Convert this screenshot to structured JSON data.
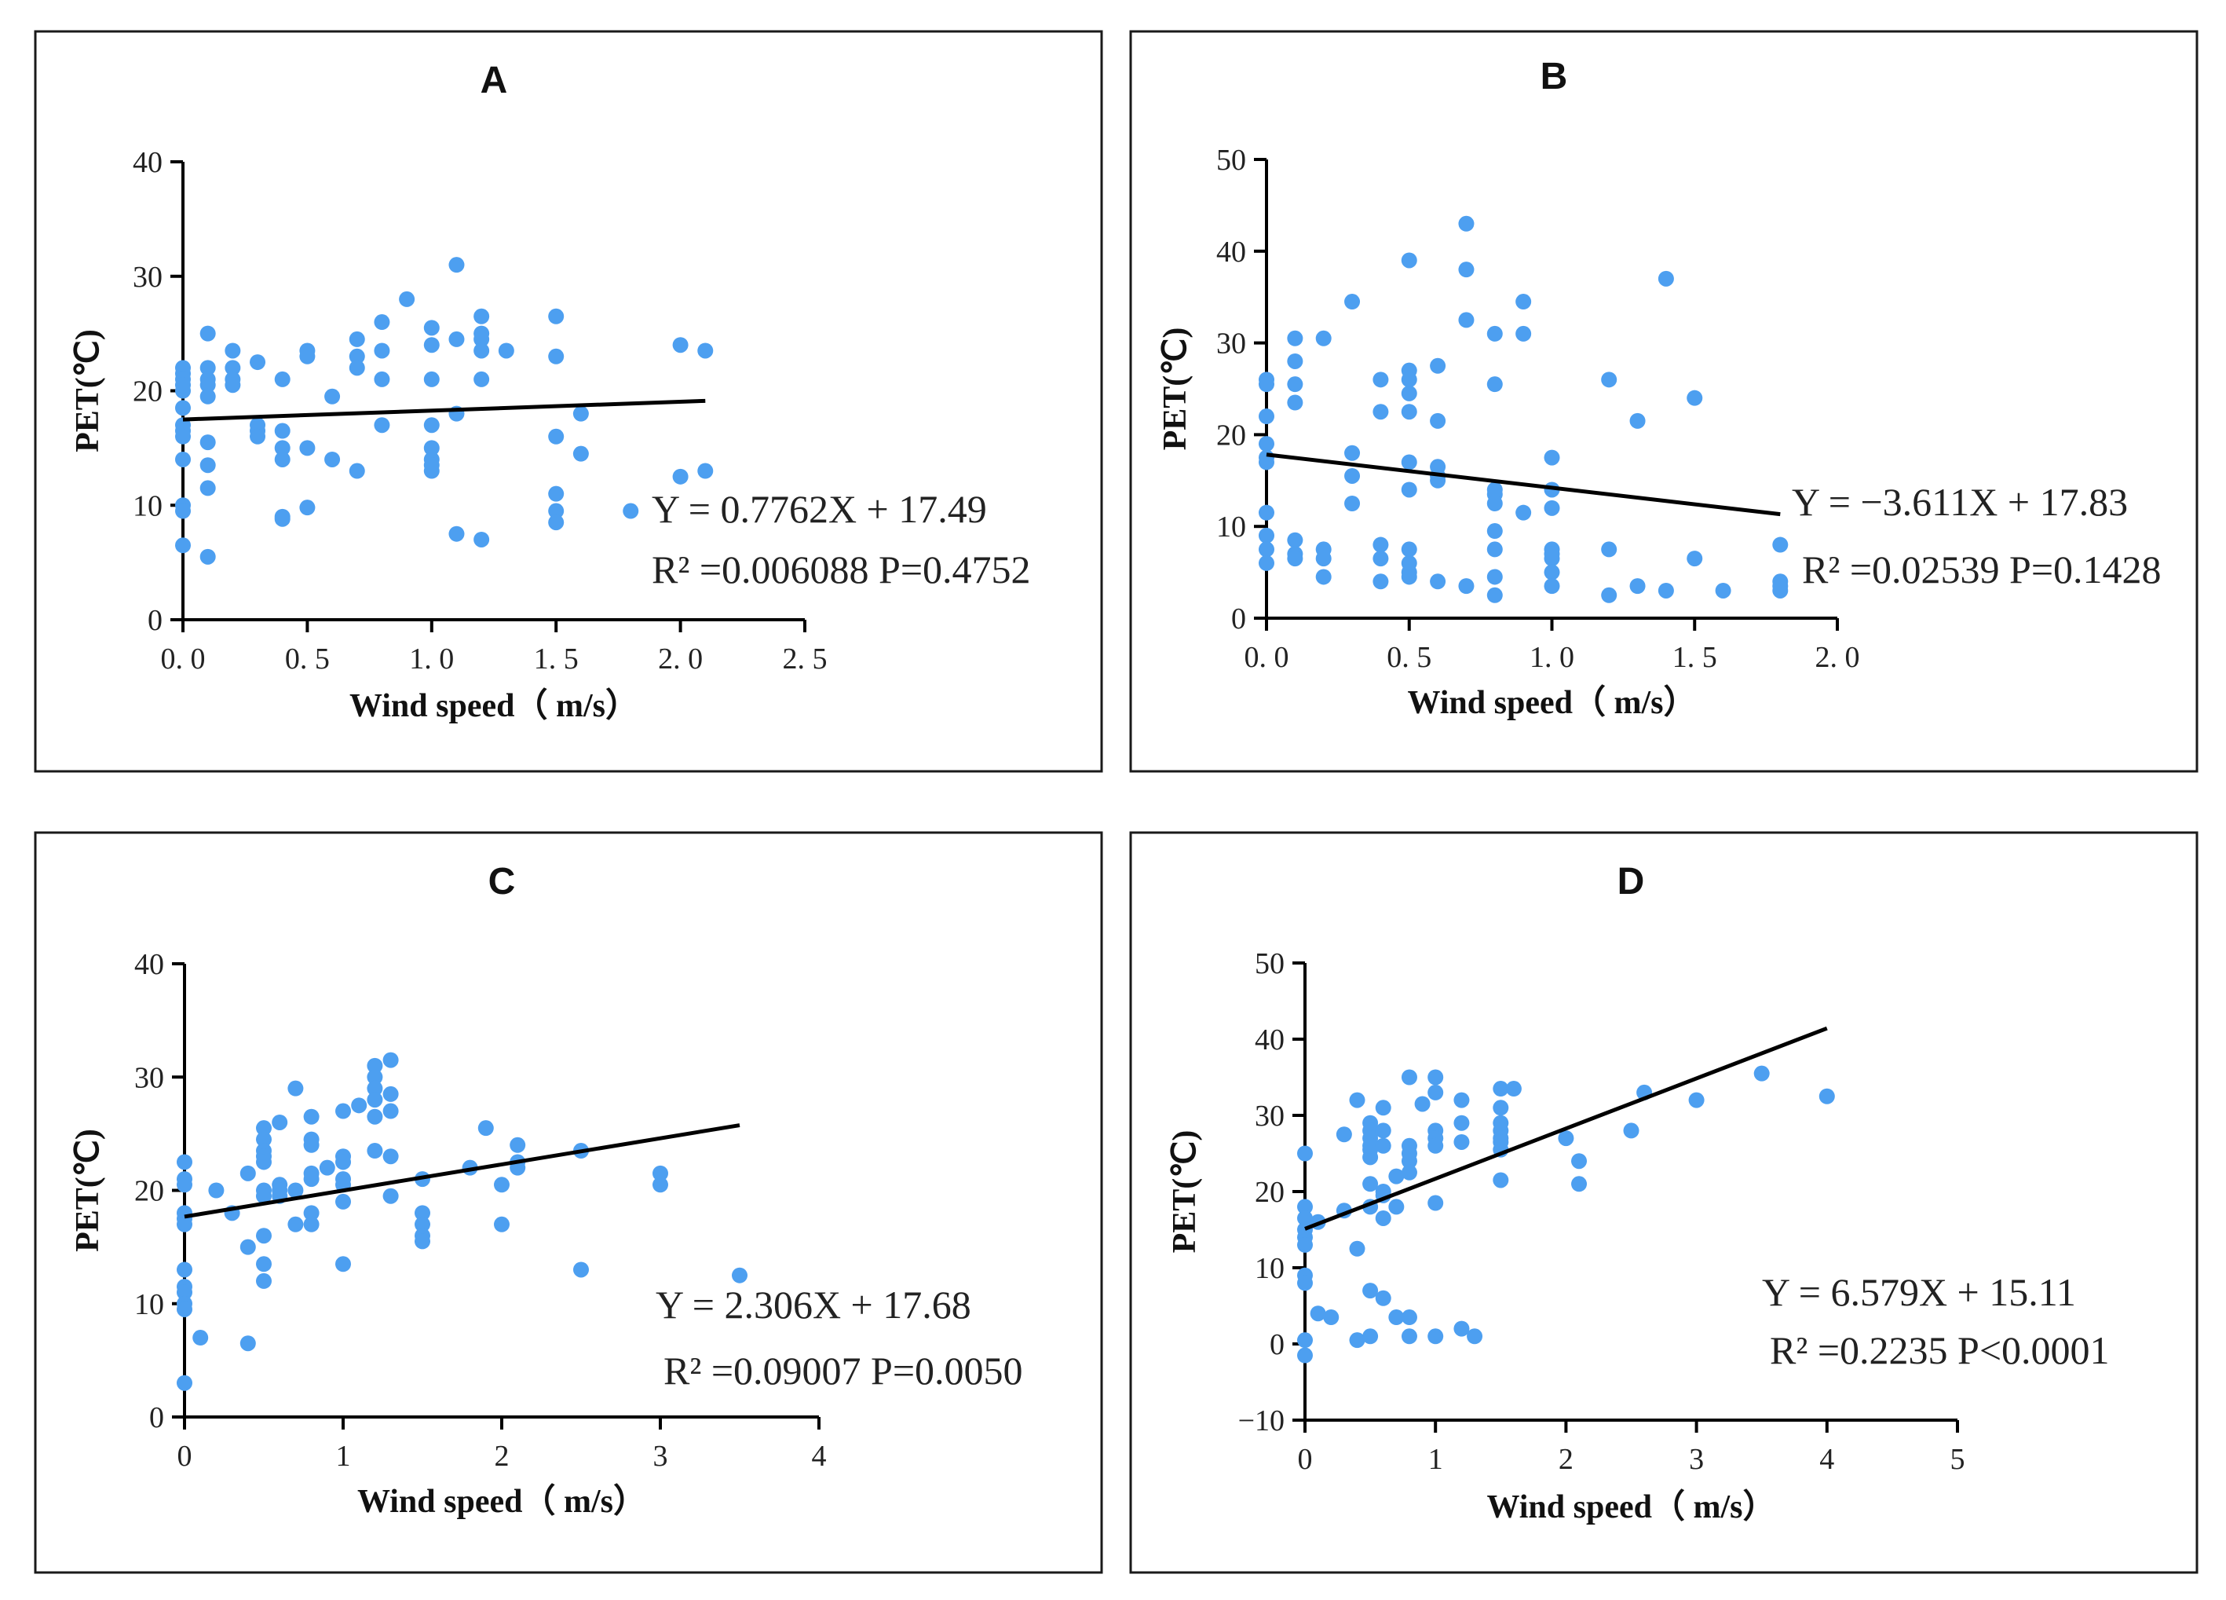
{
  "chart_data": [
    {
      "id": "A",
      "type": "scatter",
      "title": "A",
      "xlabel": "Wind speed（ m/s）",
      "ylabel": "PET(℃)",
      "xlim": [
        0,
        2.5
      ],
      "ylim": [
        0,
        40
      ],
      "xticks": [
        0,
        0.5,
        1,
        1.5,
        2,
        2.5
      ],
      "xtick_labels": [
        "0. 0",
        "0. 5",
        "1. 0",
        "1. 5",
        "2. 0",
        "2. 5"
      ],
      "yticks": [
        0,
        10,
        20,
        30,
        40
      ],
      "ytick_labels": [
        "0",
        "10",
        "20",
        "30",
        "40"
      ],
      "fit": {
        "slope": 0.7762,
        "intercept": 17.49,
        "x_range": [
          0,
          2.1
        ]
      },
      "equation": "Y = 0.7762X + 17.49",
      "stats": "R² =0.006088  P=0.4752",
      "x": [
        0,
        0,
        0,
        0,
        0,
        0,
        0,
        0,
        0,
        0,
        0,
        0,
        0,
        0.1,
        0.1,
        0.1,
        0.1,
        0.1,
        0.1,
        0.1,
        0.1,
        0.1,
        0.2,
        0.2,
        0.2,
        0.2,
        0.3,
        0.3,
        0.3,
        0.3,
        0.4,
        0.4,
        0.4,
        0.4,
        0.4,
        0.4,
        0.5,
        0.5,
        0.5,
        0.5,
        0.6,
        0.6,
        0.7,
        0.7,
        0.7,
        0.7,
        0.8,
        0.8,
        0.8,
        0.8,
        0.9,
        1,
        1,
        1,
        1,
        1,
        1,
        1,
        1,
        1.1,
        1.1,
        1.1,
        1.1,
        1.2,
        1.2,
        1.2,
        1.2,
        1.2,
        1.2,
        1.3,
        1.5,
        1.5,
        1.5,
        1.5,
        1.5,
        1.5,
        1.6,
        1.6,
        1.8,
        2.0,
        2.0,
        2.1,
        2.1
      ],
      "y": [
        22,
        21.5,
        21,
        20,
        18.5,
        17,
        16.5,
        16,
        14,
        10,
        9.5,
        6.5,
        20.5,
        25,
        22,
        21,
        20.5,
        19.5,
        15.5,
        13.5,
        11.5,
        5.5,
        23.5,
        22,
        21,
        20.5,
        22.5,
        17,
        16.5,
        16,
        21,
        16.5,
        15,
        14,
        9,
        8.8,
        23.5,
        23,
        15,
        9.8,
        19.5,
        14,
        24.5,
        23,
        22,
        13,
        26,
        23.5,
        21,
        17,
        28,
        25.5,
        24,
        21,
        17,
        15,
        14,
        13.5,
        13,
        31,
        24.5,
        18,
        7.5,
        26.5,
        25,
        24.5,
        23.5,
        21,
        7,
        23.5,
        26.5,
        23,
        16,
        11,
        9.5,
        8.5,
        18,
        14.5,
        9.5,
        24,
        12.5,
        23.5,
        13
      ]
    },
    {
      "id": "B",
      "type": "scatter",
      "title": "B",
      "xlabel": "Wind speed（ m/s）",
      "ylabel": "PET(℃)",
      "xlim": [
        0,
        2.0
      ],
      "ylim": [
        0,
        50
      ],
      "xticks": [
        0,
        0.5,
        1,
        1.5,
        2
      ],
      "xtick_labels": [
        "0. 0",
        "0. 5",
        "1. 0",
        "1. 5",
        "2. 0"
      ],
      "yticks": [
        0,
        10,
        20,
        30,
        40,
        50
      ],
      "ytick_labels": [
        "0",
        "10",
        "20",
        "30",
        "40",
        "50"
      ],
      "fit": {
        "slope": -3.611,
        "intercept": 17.83,
        "x_range": [
          0,
          1.8
        ]
      },
      "equation": "Y = −3.611X + 17.83",
      "stats": "R² =0.02539  P=0.1428",
      "x": [
        0,
        0,
        0,
        0,
        0,
        0,
        0,
        0,
        0,
        0,
        0.1,
        0.1,
        0.1,
        0.1,
        0.1,
        0.1,
        0.1,
        0.2,
        0.2,
        0.2,
        0.2,
        0.3,
        0.3,
        0.3,
        0.3,
        0.4,
        0.4,
        0.4,
        0.4,
        0.4,
        0.5,
        0.5,
        0.5,
        0.5,
        0.5,
        0.5,
        0.5,
        0.5,
        0.5,
        0.5,
        0.5,
        0.6,
        0.6,
        0.6,
        0.6,
        0.6,
        0.6,
        0.7,
        0.7,
        0.7,
        0.7,
        0.8,
        0.8,
        0.8,
        0.8,
        0.8,
        0.8,
        0.8,
        0.8,
        0.8,
        0.9,
        0.9,
        0.9,
        1.0,
        1.0,
        1.0,
        1.0,
        1.0,
        1.0,
        1.0,
        1.0,
        1.2,
        1.2,
        1.2,
        1.3,
        1.3,
        1.4,
        1.4,
        1.5,
        1.5,
        1.6,
        1.8,
        1.8,
        1.8,
        1.8
      ],
      "y": [
        26,
        25.5,
        22,
        19,
        17,
        11.5,
        9,
        7.5,
        6,
        17.5,
        30.5,
        28,
        25.5,
        23.5,
        8.5,
        7,
        6.5,
        30.5,
        7.5,
        6.5,
        4.5,
        34.5,
        18,
        15.5,
        12.5,
        26,
        22.5,
        8,
        6.5,
        4,
        39,
        27,
        26,
        24.5,
        22.5,
        17,
        14,
        7.5,
        6,
        5,
        4.5,
        27.5,
        21.5,
        16.5,
        15.5,
        15,
        4,
        43,
        38,
        32.5,
        3.5,
        31,
        25.5,
        14,
        13.5,
        9.5,
        7.5,
        4.5,
        2.5,
        12.5,
        34.5,
        31,
        11.5,
        17.5,
        14,
        12,
        7.5,
        6.5,
        5,
        3.5,
        7,
        26,
        7.5,
        2.5,
        21.5,
        3.5,
        37,
        3,
        24,
        6.5,
        3,
        8,
        4,
        3,
        3.5
      ]
    },
    {
      "id": "C",
      "type": "scatter",
      "title": "C",
      "xlabel": "Wind speed（ m/s）",
      "ylabel": "PET(℃)",
      "xlim": [
        0,
        4
      ],
      "ylim": [
        0,
        40
      ],
      "xticks": [
        0,
        1,
        2,
        3,
        4
      ],
      "xtick_labels": [
        "0",
        "1",
        "2",
        "3",
        "4"
      ],
      "yticks": [
        0,
        10,
        20,
        30,
        40
      ],
      "ytick_labels": [
        "0",
        "10",
        "20",
        "30",
        "40"
      ],
      "fit": {
        "slope": 2.306,
        "intercept": 17.68,
        "x_range": [
          0,
          3.5
        ]
      },
      "equation": "Y = 2.306X + 17.68",
      "stats": "R² =0.09007  P=0.0050",
      "x": [
        0,
        0,
        0,
        0,
        0,
        0,
        0,
        0,
        0,
        0,
        0,
        0,
        0.1,
        0.2,
        0.3,
        0.4,
        0.4,
        0.4,
        0.5,
        0.5,
        0.5,
        0.5,
        0.5,
        0.5,
        0.5,
        0.5,
        0.5,
        0.5,
        0.6,
        0.6,
        0.6,
        0.6,
        0.7,
        0.7,
        0.7,
        0.8,
        0.8,
        0.8,
        0.8,
        0.8,
        0.8,
        0.8,
        0.9,
        1.0,
        1.0,
        1.0,
        1.0,
        1.0,
        1.0,
        1.0,
        1.1,
        1.2,
        1.2,
        1.2,
        1.2,
        1.2,
        1.2,
        1.3,
        1.3,
        1.3,
        1.3,
        1.3,
        1.5,
        1.5,
        1.5,
        1.5,
        1.5,
        1.8,
        1.9,
        2.0,
        2.0,
        2.1,
        2.1,
        2.1,
        2.5,
        2.5,
        3.0,
        3.0,
        3.5
      ],
      "y": [
        22.5,
        21,
        20.5,
        18,
        17.5,
        17,
        13,
        11.5,
        11,
        10,
        9.5,
        3,
        7,
        20,
        18,
        21.5,
        15,
        6.5,
        25.5,
        24.5,
        23.5,
        23,
        20,
        19.5,
        16,
        13.5,
        12,
        22.5,
        26,
        20.5,
        20,
        19.5,
        29,
        20,
        17,
        26.5,
        24.5,
        24,
        21.5,
        21,
        18,
        17,
        22,
        27,
        23,
        22.5,
        21,
        20.5,
        19,
        13.5,
        27.5,
        31,
        30,
        29,
        28,
        26.5,
        23.5,
        31.5,
        28.5,
        27,
        23,
        19.5,
        21,
        18,
        17,
        16,
        15.5,
        22,
        25.5,
        20.5,
        17,
        24,
        22.5,
        22,
        23.5,
        13,
        21.5,
        20.5,
        12.5
      ]
    },
    {
      "id": "D",
      "type": "scatter",
      "title": "D",
      "xlabel": "Wind speed（ m/s）",
      "ylabel": "PET(℃)",
      "xlim": [
        0,
        5
      ],
      "ylim": [
        -10,
        50
      ],
      "xticks": [
        0,
        1,
        2,
        3,
        4,
        5
      ],
      "xtick_labels": [
        "0",
        "1",
        "2",
        "3",
        "4",
        "5"
      ],
      "yticks": [
        -10,
        0,
        10,
        20,
        30,
        40,
        50
      ],
      "ytick_labels": [
        "−10",
        "0",
        "10",
        "20",
        "30",
        "40",
        "50"
      ],
      "fit": {
        "slope": 6.579,
        "intercept": 15.11,
        "x_range": [
          0,
          4
        ]
      },
      "equation": "Y = 6.579X + 15.11",
      "stats": "R² =0.2235  P<0.0001",
      "x": [
        0,
        0,
        0,
        0,
        0,
        0,
        0,
        0,
        0,
        0,
        0.1,
        0.1,
        0.2,
        0.3,
        0.3,
        0.4,
        0.4,
        0.4,
        0.5,
        0.5,
        0.5,
        0.5,
        0.5,
        0.5,
        0.5,
        0.5,
        0.5,
        0.5,
        0.6,
        0.6,
        0.6,
        0.6,
        0.6,
        0.6,
        0.6,
        0.7,
        0.7,
        0.7,
        0.8,
        0.8,
        0.8,
        0.8,
        0.8,
        0.8,
        0.8,
        0.9,
        1.0,
        1.0,
        1.0,
        1.0,
        1.0,
        1.0,
        1.0,
        1.2,
        1.2,
        1.2,
        1.2,
        1.3,
        1.5,
        1.5,
        1.5,
        1.5,
        1.5,
        1.5,
        1.5,
        1.5,
        1.6,
        2.0,
        2.1,
        2.1,
        2.5,
        2.6,
        3.0,
        3.5,
        4.0
      ],
      "y": [
        25,
        18,
        16.5,
        15,
        14,
        13,
        9,
        8,
        0.5,
        -1.5,
        16,
        4,
        3.5,
        27.5,
        17.5,
        32,
        12.5,
        0.5,
        29,
        28,
        27,
        25.5,
        24.5,
        21,
        18,
        7,
        1,
        26,
        31,
        28,
        26,
        20,
        16.5,
        6,
        19.5,
        18,
        3.5,
        22,
        35,
        26,
        25,
        24,
        22.5,
        3.5,
        1,
        31.5,
        35,
        33,
        28,
        27,
        26,
        18.5,
        1,
        32,
        29,
        26.5,
        2,
        1,
        33.5,
        31,
        29,
        28,
        27,
        25.5,
        21.5,
        26.5,
        33.5,
        27,
        24,
        21,
        28,
        33,
        32,
        35.5,
        32.5
      ]
    }
  ]
}
